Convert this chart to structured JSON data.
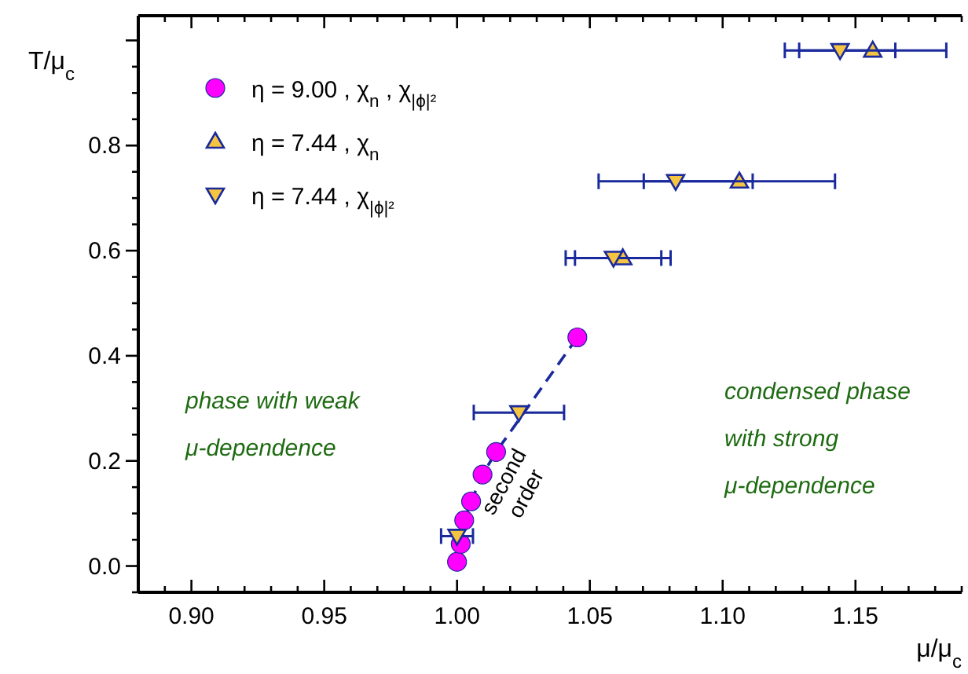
{
  "chart_data": {
    "type": "scatter",
    "xlabel": "μ/μ$_{c}$",
    "ylabel": "T/μ$_{c}$",
    "xlim": [
      0.88,
      1.19
    ],
    "ylim": [
      -0.05,
      1.047
    ],
    "xticks": [
      {
        "value": 0.88,
        "label": null
      },
      {
        "value": 0.89,
        "label": null
      },
      {
        "value": 0.9,
        "label": "0.90"
      },
      {
        "value": 0.91,
        "label": null
      },
      {
        "value": 0.92,
        "label": null
      },
      {
        "value": 0.93,
        "label": null
      },
      {
        "value": 0.94,
        "label": null
      },
      {
        "value": 0.95,
        "label": "0.95"
      },
      {
        "value": 0.96,
        "label": null
      },
      {
        "value": 0.97,
        "label": null
      },
      {
        "value": 0.98,
        "label": null
      },
      {
        "value": 0.99,
        "label": null
      },
      {
        "value": 1.0,
        "label": "1.00"
      },
      {
        "value": 1.01,
        "label": null
      },
      {
        "value": 1.02,
        "label": null
      },
      {
        "value": 1.03,
        "label": null
      },
      {
        "value": 1.04,
        "label": null
      },
      {
        "value": 1.05,
        "label": "1.05"
      },
      {
        "value": 1.06,
        "label": null
      },
      {
        "value": 1.07,
        "label": null
      },
      {
        "value": 1.08,
        "label": null
      },
      {
        "value": 1.09,
        "label": null
      },
      {
        "value": 1.1,
        "label": "1.10"
      },
      {
        "value": 1.11,
        "label": null
      },
      {
        "value": 1.12,
        "label": null
      },
      {
        "value": 1.13,
        "label": null
      },
      {
        "value": 1.14,
        "label": null
      },
      {
        "value": 1.15,
        "label": "1.15"
      },
      {
        "value": 1.16,
        "label": null
      },
      {
        "value": 1.17,
        "label": null
      },
      {
        "value": 1.18,
        "label": null
      },
      {
        "value": 1.19,
        "label": null
      }
    ],
    "yticks": [
      {
        "value": -0.05,
        "label": null
      },
      {
        "value": 0.0,
        "label": "0.0"
      },
      {
        "value": 0.05,
        "label": null
      },
      {
        "value": 0.1,
        "label": null
      },
      {
        "value": 0.15,
        "label": null
      },
      {
        "value": 0.2,
        "label": "0.2"
      },
      {
        "value": 0.25,
        "label": null
      },
      {
        "value": 0.3,
        "label": null
      },
      {
        "value": 0.35,
        "label": null
      },
      {
        "value": 0.4,
        "label": "0.4"
      },
      {
        "value": 0.45,
        "label": null
      },
      {
        "value": 0.5,
        "label": null
      },
      {
        "value": 0.55,
        "label": null
      },
      {
        "value": 0.6,
        "label": "0.6"
      },
      {
        "value": 0.65,
        "label": null
      },
      {
        "value": 0.7,
        "label": null
      },
      {
        "value": 0.75,
        "label": null
      },
      {
        "value": 0.8,
        "label": "0.8"
      },
      {
        "value": 0.85,
        "label": null
      },
      {
        "value": 0.9,
        "label": null
      },
      {
        "value": 0.95,
        "label": null
      },
      {
        "value": 1.0,
        "label": null
      }
    ],
    "grid": false,
    "legend": "top left",
    "series": [
      {
        "name": "η = 9.00 ,  χ$_{n}$ ,  χ$_{|ϕ|²}$",
        "type": "line",
        "line_style": "dashed",
        "marker": "circle",
        "color": "#ff00ff",
        "x": [
          1.0,
          1.0014,
          1.0027,
          1.0053,
          1.0096,
          1.0147,
          1.0453
        ],
        "values": [
          0.008,
          0.042,
          0.087,
          0.123,
          0.174,
          0.217,
          0.435
        ]
      },
      {
        "name": "η = 7.44 ,  χ$_{n}$",
        "marker": "triangle",
        "color": "#f5c542",
        "x": [
          1.0624,
          1.1063,
          1.1565
        ],
        "values": [
          0.586,
          0.732,
          0.981
        ],
        "xerrors": [
          0.018,
          0.036,
          0.0277
        ]
      },
      {
        "name": "η = 7.44 ,  χ$_{|ϕ|²}$",
        "marker": "triangle-down",
        "color": "#f5c542",
        "x": [
          1.0,
          1.0233,
          1.0589,
          1.0823,
          1.1442
        ],
        "values": [
          0.057,
          0.292,
          0.586,
          0.732,
          0.981
        ],
        "xerrors": [
          0.006,
          0.017,
          0.018,
          0.029,
          0.0208
        ]
      }
    ],
    "annotations": [
      "phase with weak\nμ-dependence",
      "condensed phase\nwith strong\nμ-dependence",
      "second\norder"
    ]
  }
}
